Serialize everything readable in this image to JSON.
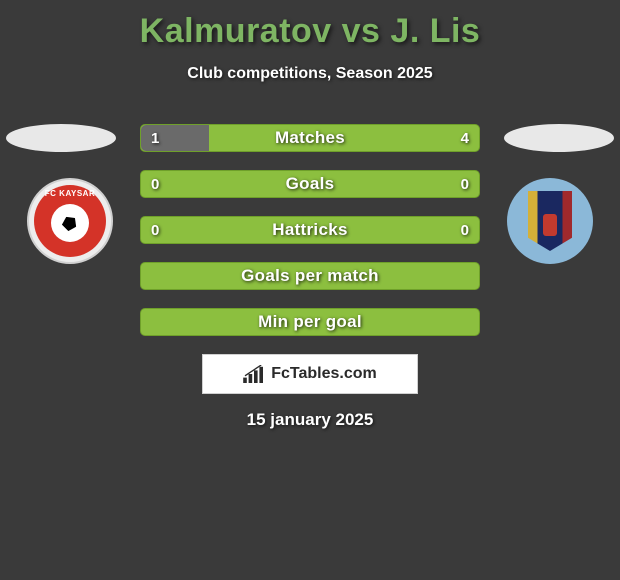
{
  "title": "Kalmuratov vs J. Lis",
  "subtitle": "Club competitions, Season 2025",
  "date": "15 january 2025",
  "watermark": "FcTables.com",
  "colors": {
    "title": "#7eb563",
    "background": "#3a3a3a",
    "bar_green": "#8cbf3f",
    "bar_green_dark": "#6fa02a",
    "bar_gray": "#6a6a6a",
    "oval": "#e8e8e8"
  },
  "bars": [
    {
      "label": "Matches",
      "left_val": "1",
      "right_val": "4",
      "left_pct": 20,
      "right_pct": 80,
      "left_color": "#6a6a6a",
      "right_color": "#8cbf3f",
      "show_vals": true
    },
    {
      "label": "Goals",
      "left_val": "0",
      "right_val": "0",
      "left_pct": 0,
      "right_pct": 0,
      "left_color": "#6a6a6a",
      "right_color": "#8cbf3f",
      "show_vals": true,
      "full_bg": "#8cbf3f"
    },
    {
      "label": "Hattricks",
      "left_val": "0",
      "right_val": "0",
      "left_pct": 0,
      "right_pct": 0,
      "left_color": "#6a6a6a",
      "right_color": "#8cbf3f",
      "show_vals": true,
      "full_bg": "#8cbf3f"
    },
    {
      "label": "Goals per match",
      "left_val": "",
      "right_val": "",
      "left_pct": 0,
      "right_pct": 0,
      "show_vals": false,
      "full_bg": "#8cbf3f"
    },
    {
      "label": "Min per goal",
      "left_val": "",
      "right_val": "",
      "left_pct": 0,
      "right_pct": 0,
      "show_vals": false,
      "full_bg": "#8cbf3f"
    }
  ]
}
